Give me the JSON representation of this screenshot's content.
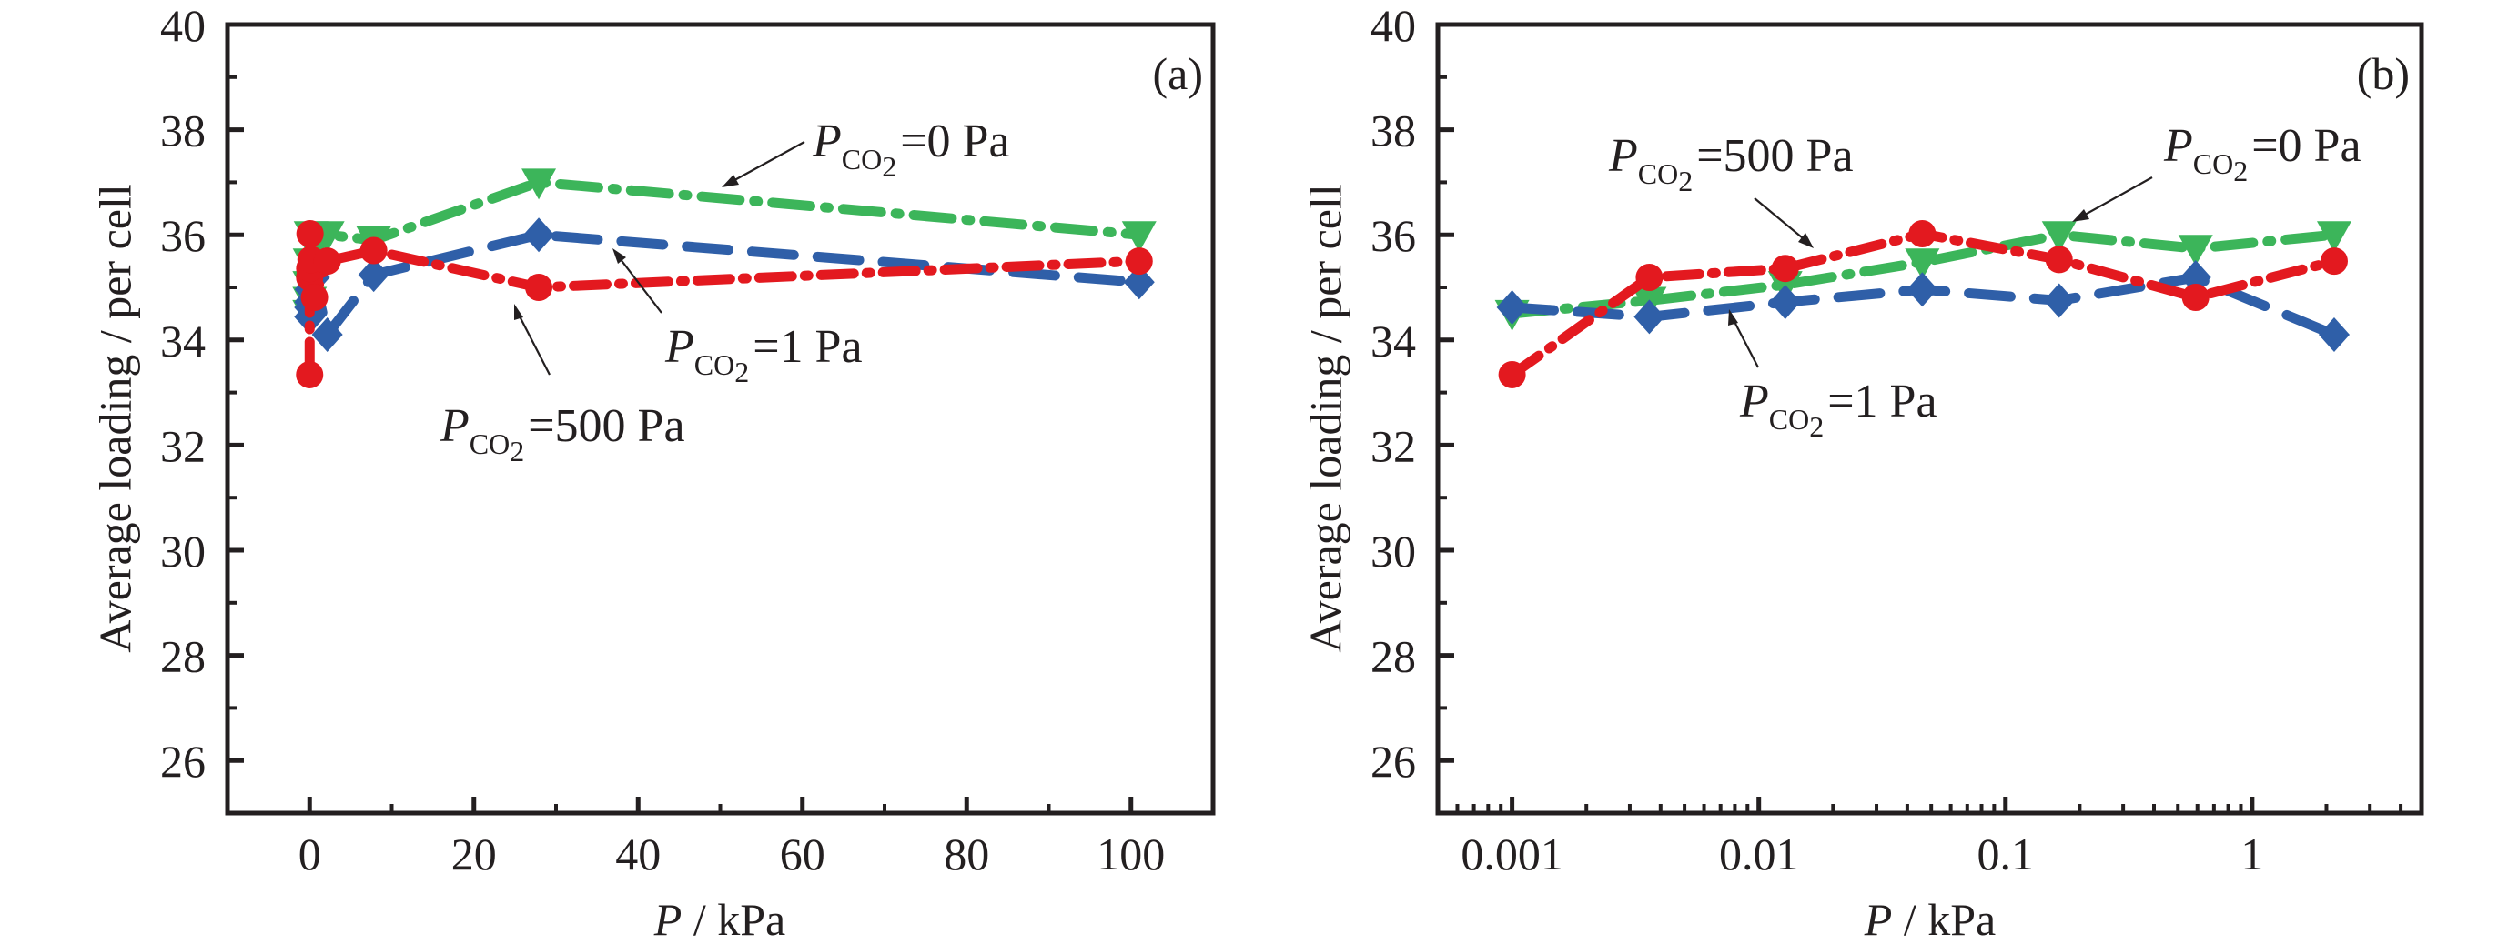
{
  "chart_data": [
    {
      "type": "line",
      "panel_tag": "(a)",
      "xscale": "linear",
      "xlabel": "P / kPa",
      "xlabel_var": "P",
      "xlabel_unit": " / kPa",
      "ylabel": "Average loading / per cell",
      "xlim": [
        -10,
        110
      ],
      "ylim": [
        25,
        40
      ],
      "xticks": [
        0,
        20,
        40,
        60,
        80,
        100
      ],
      "xtick_labels": [
        "0",
        "20",
        "40",
        "60",
        "80",
        "100"
      ],
      "yticks": [
        26,
        28,
        30,
        32,
        34,
        36,
        38,
        40
      ],
      "ytick_labels": [
        "26",
        "28",
        "30",
        "32",
        "34",
        "36",
        "38",
        "40"
      ],
      "grid": false,
      "x": [
        0.001,
        0.0036,
        0.0128,
        0.046,
        0.165,
        0.59,
        2.15,
        7.8,
        27.9,
        101
      ],
      "series": [
        {
          "name": "P_CO2 = 0 Pa",
          "color": "#3cb55a",
          "marker": "triangle-down",
          "linestyle": "dash-dot",
          "values": [
            34.5,
            34.75,
            35.05,
            35.48,
            36.0,
            35.74,
            36.0,
            35.9,
            37.0,
            36.0
          ]
        },
        {
          "name": "P_CO2 = 1 Pa",
          "color": "#2f5fa8",
          "marker": "diamond",
          "linestyle": "dashed",
          "values": [
            34.62,
            34.44,
            34.72,
            34.96,
            34.75,
            35.19,
            34.1,
            35.24,
            36.0,
            35.1
          ]
        },
        {
          "name": "P_CO2 = 500 Pa",
          "color": "#e3191f",
          "marker": "circle",
          "linestyle": "dash-dot-dot",
          "values": [
            33.34,
            35.19,
            35.36,
            36.02,
            35.53,
            34.81,
            35.5,
            35.7,
            35.0,
            35.5
          ]
        }
      ],
      "annotations": [
        {
          "sym": "P",
          "sub": "CO",
          "sub2": "2",
          "text": "=0 Pa",
          "series": "P_CO2 = 0 Pa"
        },
        {
          "sym": "P",
          "sub": "CO",
          "sub2": "2",
          "text": "=1 Pa",
          "series": "P_CO2 = 1 Pa"
        },
        {
          "sym": "P",
          "sub": "CO",
          "sub2": "2",
          "text": "=500 Pa",
          "series": "P_CO2 = 500 Pa"
        }
      ]
    },
    {
      "type": "line",
      "panel_tag": "(b)",
      "xscale": "log",
      "xlabel": "P / kPa",
      "xlabel_var": "P",
      "xlabel_unit": " / kPa",
      "ylabel": "Average loading / per cell",
      "xlim": [
        0.0005,
        4.86
      ],
      "ylim": [
        25,
        40
      ],
      "xticks": [
        0.001,
        0.01,
        0.1,
        1
      ],
      "xtick_labels": [
        "0.001",
        "0.01",
        "0.1",
        "1"
      ],
      "yticks": [
        26,
        28,
        30,
        32,
        34,
        36,
        38,
        40
      ],
      "ytick_labels": [
        "26",
        "28",
        "30",
        "32",
        "34",
        "36",
        "38",
        "40"
      ],
      "grid": false,
      "x": [
        0.001,
        0.0036,
        0.0128,
        0.046,
        0.165,
        0.59,
        2.15
      ],
      "series": [
        {
          "name": "P_CO2 = 0 Pa",
          "color": "#3cb55a",
          "marker": "triangle-down",
          "linestyle": "dash-dot",
          "values": [
            34.5,
            34.75,
            35.05,
            35.48,
            36.0,
            35.74,
            36.0
          ]
        },
        {
          "name": "P_CO2 = 1 Pa",
          "color": "#2f5fa8",
          "marker": "diamond",
          "linestyle": "dashed",
          "values": [
            34.62,
            34.44,
            34.72,
            34.96,
            34.75,
            35.19,
            34.1
          ]
        },
        {
          "name": "P_CO2 = 500 Pa",
          "color": "#e3191f",
          "marker": "circle",
          "linestyle": "dash-dot-dot",
          "values": [
            33.34,
            35.19,
            35.36,
            36.02,
            35.53,
            34.81,
            35.5
          ]
        }
      ],
      "annotations": [
        {
          "sym": "P",
          "sub": "CO",
          "sub2": "2",
          "text": "=500 Pa",
          "series": "P_CO2 = 500 Pa"
        },
        {
          "sym": "P",
          "sub": "CO",
          "sub2": "2",
          "text": "=0 Pa",
          "series": "P_CO2 = 0 Pa"
        },
        {
          "sym": "P",
          "sub": "CO",
          "sub2": "2",
          "text": "=1 Pa",
          "series": "P_CO2 = 1 Pa"
        }
      ]
    }
  ]
}
